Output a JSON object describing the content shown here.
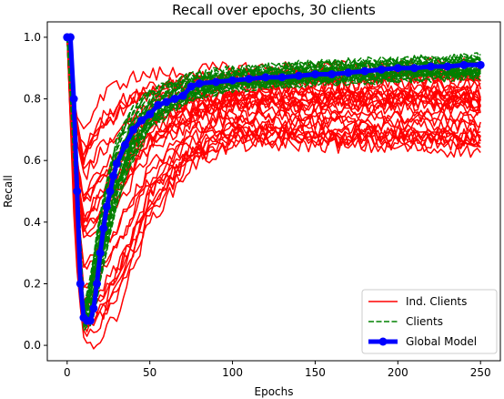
{
  "chart_data": {
    "type": "line",
    "title": "Recall over epochs, 30 clients",
    "xlabel": "Epochs",
    "ylabel": "Recall",
    "xlim": [
      -12,
      262
    ],
    "ylim": [
      -0.05,
      1.05
    ],
    "x_ticks": [
      0,
      50,
      100,
      150,
      200,
      250
    ],
    "y_ticks": [
      0.0,
      0.2,
      0.4,
      0.6,
      0.8,
      1.0
    ],
    "x_tick_labels": [
      "0",
      "50",
      "100",
      "150",
      "200",
      "250"
    ],
    "y_tick_labels": [
      "0.0",
      "0.2",
      "0.4",
      "0.6",
      "0.8",
      "1.0"
    ],
    "legend_position": "lower-right",
    "legend": [
      "Ind. Clients",
      "Clients",
      "Global Model"
    ],
    "colors": {
      "ind_clients": "#ff0000",
      "clients": "#008000",
      "global": "#0000ff"
    },
    "series": [
      {
        "name": "Ind. Clients",
        "style": "solid",
        "count": 30,
        "envelope": {
          "x": [
            0,
            5,
            10,
            15,
            20,
            30,
            40,
            50,
            75,
            100,
            150,
            200,
            250
          ],
          "min": [
            1.0,
            0.3,
            0.0,
            0.0,
            0.02,
            0.1,
            0.25,
            0.4,
            0.58,
            0.65,
            0.65,
            0.64,
            0.63
          ],
          "max": [
            1.0,
            0.78,
            0.7,
            0.75,
            0.8,
            0.85,
            0.87,
            0.88,
            0.89,
            0.9,
            0.9,
            0.91,
            0.91
          ]
        }
      },
      {
        "name": "Clients",
        "style": "dashed",
        "count": 30,
        "envelope": {
          "x": [
            0,
            5,
            10,
            15,
            20,
            30,
            40,
            50,
            75,
            100,
            150,
            200,
            250
          ],
          "min": [
            1.0,
            0.5,
            0.05,
            0.06,
            0.2,
            0.45,
            0.6,
            0.7,
            0.8,
            0.83,
            0.85,
            0.86,
            0.87
          ],
          "max": [
            1.0,
            0.75,
            0.12,
            0.25,
            0.45,
            0.68,
            0.78,
            0.83,
            0.88,
            0.9,
            0.92,
            0.93,
            0.94
          ]
        }
      },
      {
        "name": "Global Model",
        "style": "solid-markers",
        "x": [
          0,
          2,
          4,
          6,
          8,
          10,
          12,
          14,
          16,
          18,
          20,
          22,
          24,
          26,
          28,
          30,
          35,
          40,
          45,
          50,
          55,
          60,
          65,
          70,
          75,
          80,
          90,
          100,
          110,
          120,
          130,
          140,
          150,
          160,
          170,
          180,
          190,
          200,
          210,
          220,
          230,
          240,
          250
        ],
        "y": [
          1.0,
          1.0,
          0.8,
          0.5,
          0.2,
          0.09,
          0.08,
          0.08,
          0.12,
          0.2,
          0.3,
          0.38,
          0.45,
          0.5,
          0.55,
          0.59,
          0.65,
          0.7,
          0.73,
          0.75,
          0.78,
          0.79,
          0.8,
          0.81,
          0.84,
          0.85,
          0.855,
          0.86,
          0.865,
          0.87,
          0.87,
          0.875,
          0.88,
          0.88,
          0.885,
          0.89,
          0.895,
          0.9,
          0.9,
          0.905,
          0.905,
          0.91,
          0.91
        ]
      }
    ]
  }
}
